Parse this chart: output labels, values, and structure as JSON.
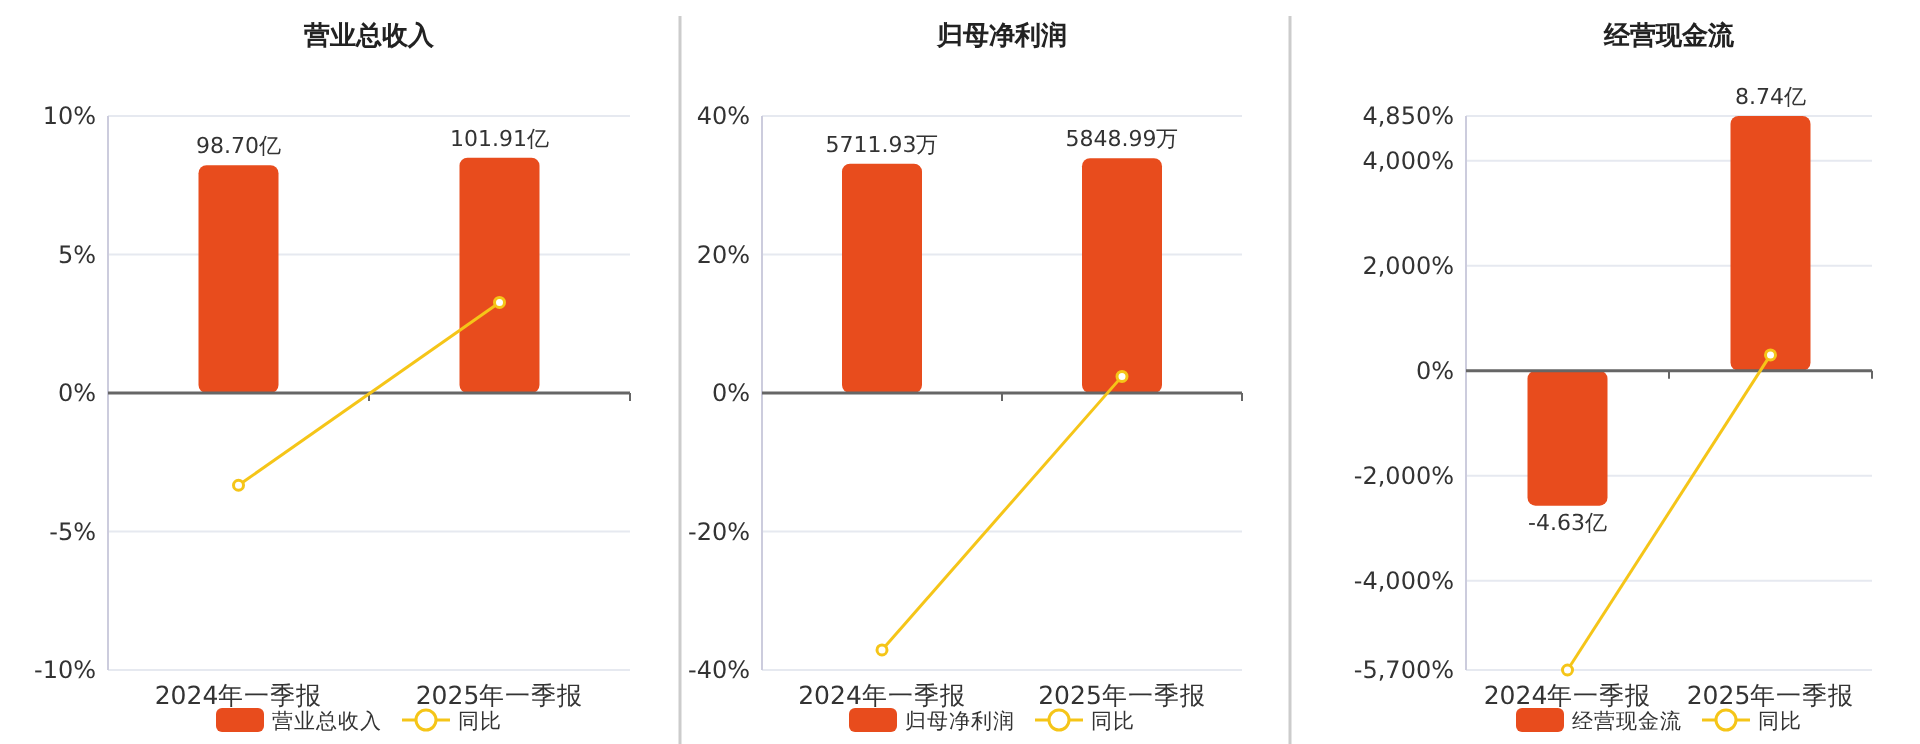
{
  "chart_data": [
    {
      "type": "bar",
      "title": "营业总收入",
      "categories": [
        "2024年一季报",
        "2025年一季报"
      ],
      "series": [
        {
          "name": "营业总收入",
          "axis": "y2",
          "color": "#e84c1d",
          "values": [
            98.7,
            101.91
          ],
          "value_labels": [
            "98.70亿",
            "101.91亿"
          ]
        },
        {
          "name": "同比",
          "type": "line",
          "color": "#f5c518",
          "values": [
            -3.33,
            3.27
          ]
        }
      ],
      "ylim": [
        -10,
        10
      ],
      "yticks": [
        {
          "value": -10,
          "label": "-10%"
        },
        {
          "value": -5,
          "label": "-5%"
        },
        {
          "value": 0,
          "label": "0%"
        },
        {
          "value": 5,
          "label": "5%"
        },
        {
          "value": 10,
          "label": "10%"
        }
      ],
      "y2lim": [
        -120,
        120
      ],
      "grid": "y",
      "legend": "bottom",
      "marker": "circle"
    },
    {
      "type": "bar",
      "title": "归母净利润",
      "categories": [
        "2024年一季报",
        "2025年一季报"
      ],
      "series": [
        {
          "name": "归母净利润",
          "axis": "y2",
          "color": "#e84c1d",
          "values": [
            5711.93,
            5848.99
          ],
          "value_labels": [
            "5711.93万",
            "5848.99万"
          ]
        },
        {
          "name": "同比",
          "type": "line",
          "color": "#f5c518",
          "values": [
            -37.1,
            2.4
          ]
        }
      ],
      "ylim": [
        -40,
        40
      ],
      "yticks": [
        {
          "value": -40,
          "label": "-40%"
        },
        {
          "value": -20,
          "label": "-20%"
        },
        {
          "value": 0,
          "label": "0%"
        },
        {
          "value": 20,
          "label": "20%"
        },
        {
          "value": 40,
          "label": "40%"
        }
      ],
      "y2lim": [
        -6900,
        6900
      ],
      "grid": "y",
      "legend": "bottom",
      "marker": "circle"
    },
    {
      "type": "bar",
      "title": "经营现金流",
      "categories": [
        "2024年一季报",
        "2025年一季报"
      ],
      "series": [
        {
          "name": "经营现金流",
          "axis": "y2",
          "color": "#e84c1d",
          "values": [
            -4.63,
            8.74
          ],
          "value_labels": [
            "-4.63亿",
            "8.74亿"
          ]
        },
        {
          "name": "同比",
          "type": "line",
          "color": "#f5c518",
          "values": [
            -5700,
            300
          ]
        }
      ],
      "ylim": [
        -5700,
        4850
      ],
      "yticks": [
        {
          "value": -5700,
          "label": "-5,700%"
        },
        {
          "value": -4000,
          "label": "-4,000%"
        },
        {
          "value": -2000,
          "label": "-2,000%"
        },
        {
          "value": 0,
          "label": "0%"
        },
        {
          "value": 2000,
          "label": "2,000%"
        },
        {
          "value": 4000,
          "label": "4,000%"
        },
        {
          "value": 4850,
          "label": "4,850%"
        }
      ],
      "y2lim": [
        -10.27,
        8.74
      ],
      "grid": "y",
      "legend": "bottom",
      "marker": "circle"
    }
  ]
}
